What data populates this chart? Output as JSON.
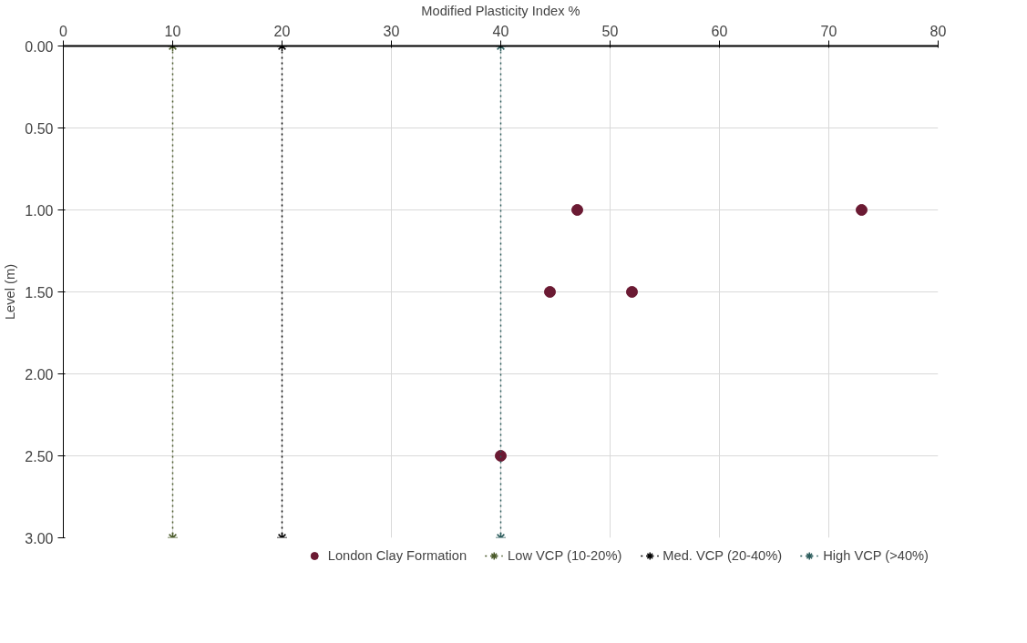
{
  "chart_data": {
    "type": "scatter",
    "xlabel": "Modified Plasticity Index %",
    "ylabel": "Level (m)",
    "xlim": [
      0,
      80
    ],
    "xticks": [
      0,
      10,
      20,
      30,
      40,
      50,
      60,
      70,
      80
    ],
    "ylim": [
      3,
      0
    ],
    "yticks": [
      {
        "value": 0,
        "label": "0.00"
      },
      {
        "value": 0.5,
        "label": "0.50"
      },
      {
        "value": 1,
        "label": "1.00"
      },
      {
        "value": 1.5,
        "label": "1.50"
      },
      {
        "value": 2,
        "label": "2.00"
      },
      {
        "value": 2.5,
        "label": "2.50"
      },
      {
        "value": 3,
        "label": "3.00"
      }
    ],
    "grid": true,
    "legend": "bottom",
    "series": [
      {
        "name": "London Clay Formation",
        "marker": "circle",
        "color": "#6b1a33",
        "x": [
          47,
          73,
          44.5,
          52,
          40
        ],
        "values": [
          1.0,
          1.0,
          1.5,
          1.5,
          2.5
        ]
      },
      {
        "name": "Low VCP (10-20%)",
        "type": "line",
        "marker": "cross",
        "line_style": "dotted",
        "color": "#4a5a2a",
        "x": [
          10,
          10
        ],
        "values": [
          0,
          3
        ]
      },
      {
        "name": "Med. VCP (20-40%)",
        "type": "line",
        "marker": "cross",
        "line_style": "dotted",
        "color": "#000000",
        "x": [
          20,
          20
        ],
        "values": [
          0,
          3
        ]
      },
      {
        "name": "High VCP (>40%)",
        "type": "line",
        "marker": "cross",
        "line_style": "dotted",
        "color": "#2a5a5a",
        "x": [
          40,
          40
        ],
        "values": [
          0,
          3
        ]
      }
    ]
  }
}
